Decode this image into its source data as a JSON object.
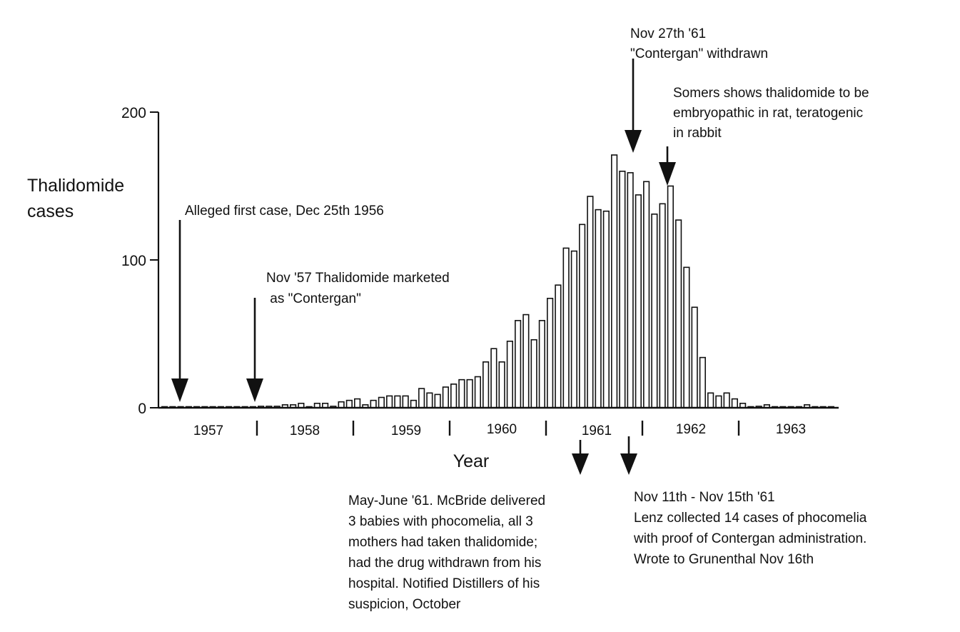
{
  "chart_data": {
    "type": "bar",
    "title": "",
    "xlabel": "Year",
    "ylabel_lines": [
      "Thalidomide",
      "cases"
    ],
    "ylim": [
      0,
      200
    ],
    "yticks": [
      0,
      100,
      200
    ],
    "year_labels": [
      "1957",
      "1958",
      "1959",
      "1960",
      "1961",
      "1962",
      "1963"
    ],
    "bar_start": "1957-01",
    "bar_interval": "month",
    "values": [
      0,
      0,
      0,
      0,
      0,
      0,
      0,
      0,
      0,
      0,
      0,
      0,
      1,
      1,
      1,
      2,
      2,
      3,
      0,
      3,
      3,
      1,
      4,
      5,
      6,
      2,
      5,
      7,
      8,
      8,
      8,
      5,
      13,
      10,
      9,
      14,
      16,
      19,
      19,
      21,
      31,
      40,
      31,
      45,
      59,
      63,
      46,
      59,
      74,
      83,
      108,
      106,
      124,
      143,
      134,
      133,
      171,
      160,
      159,
      144,
      153,
      131,
      138,
      150,
      127,
      95,
      68,
      34,
      10,
      8,
      10,
      6,
      3,
      0,
      1,
      2,
      0,
      0,
      0,
      0,
      2,
      0,
      0,
      0
    ],
    "annotations": [
      {
        "id": "first_case",
        "lines": [
          "Alleged first case, Dec 25th 1956"
        ]
      },
      {
        "id": "marketed",
        "lines": [
          "Nov '57 Thalidomide marketed",
          " as \"Contergan\""
        ]
      },
      {
        "id": "withdrawn",
        "lines": [
          "Nov 27th '61",
          "\"Contergan\" withdrawn"
        ]
      },
      {
        "id": "somers",
        "lines": [
          "Somers shows thalidomide to be",
          "embryopathic in rat, teratogenic",
          "in rabbit"
        ]
      },
      {
        "id": "mcbride",
        "lines": [
          "May-June '61. McBride delivered",
          "3 babies with phocomelia, all 3",
          "mothers had taken thalidomide;",
          "had the drug withdrawn from his",
          "hospital. Notified Distillers of his",
          "suspicion, October"
        ]
      },
      {
        "id": "lenz",
        "lines": [
          "Nov 11th - Nov 15th '61",
          "Lenz collected 14 cases of phocomelia",
          "with proof of Contergan administration.",
          "Wrote to Grunenthal Nov 16th"
        ]
      }
    ]
  }
}
